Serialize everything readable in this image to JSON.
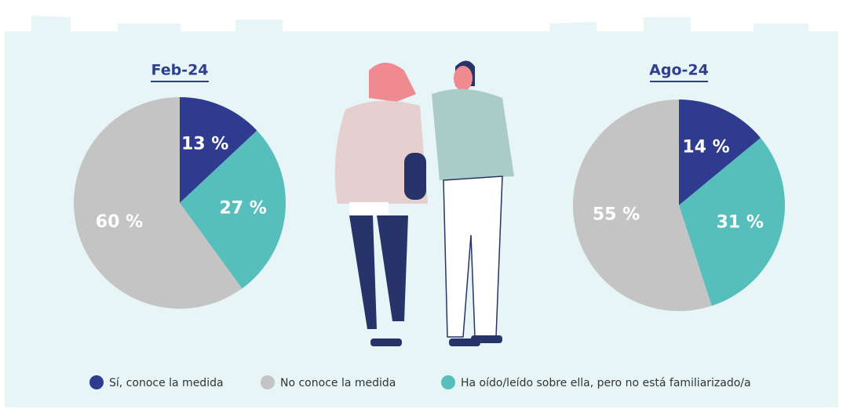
{
  "legend": [
    {
      "label": "Sí, conoce la medida",
      "color": "#2e3b8f"
    },
    {
      "label": "No conoce la medida",
      "color": "#c4c4c4"
    },
    {
      "label": "Ha oído/leído sobre ella, pero no está familiarizado/a",
      "color": "#56bfbb"
    }
  ],
  "chart_data": [
    {
      "type": "pie",
      "title": "Feb-24",
      "values": [
        13,
        60,
        27
      ],
      "value_labels": [
        "13 %",
        "60 %",
        "27 %"
      ]
    },
    {
      "type": "pie",
      "title": "Ago-24",
      "values": [
        14,
        55,
        31
      ],
      "value_labels": [
        "14 %",
        "55 %",
        "31 %"
      ]
    }
  ]
}
